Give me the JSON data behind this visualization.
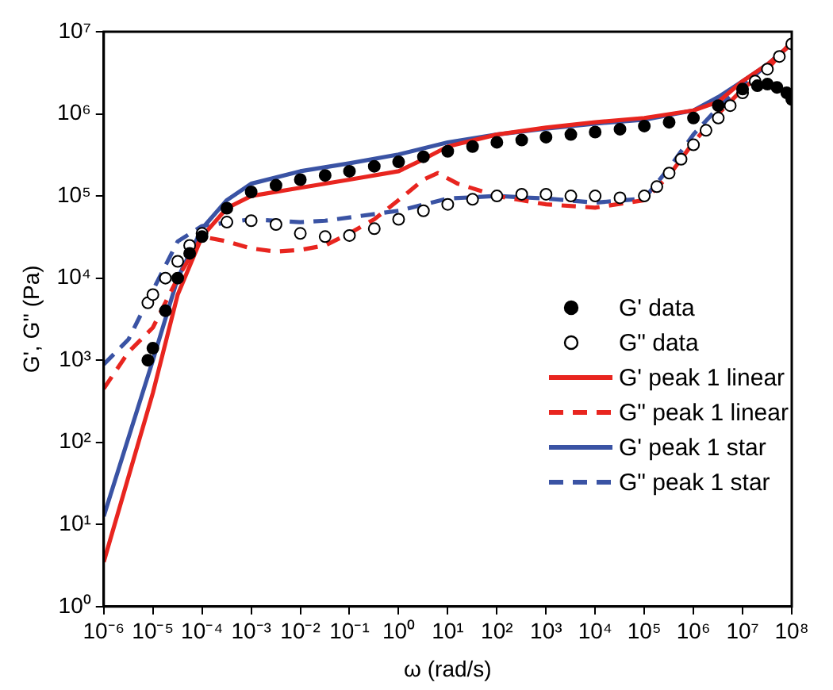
{
  "chart_data": {
    "type": "line",
    "xlabel": "ω (rad/s)",
    "ylabel": "G', G'' (Pa)",
    "log": "xy",
    "grid": false,
    "legend": "right",
    "xlim": [
      1e-06,
      100000000.0
    ],
    "ylim": [
      1,
      10000000.0
    ],
    "xticks": [
      {
        "value": 1e-06,
        "label": "10⁻⁶"
      },
      {
        "value": 1e-05,
        "label": "10⁻⁵"
      },
      {
        "value": 0.0001,
        "label": "10⁻⁴"
      },
      {
        "value": 0.001,
        "label": "10⁻³"
      },
      {
        "value": 0.01,
        "label": "10⁻²"
      },
      {
        "value": 0.1,
        "label": "10⁻¹"
      },
      {
        "value": 1,
        "label": "10⁰"
      },
      {
        "value": 10,
        "label": "10¹"
      },
      {
        "value": 100,
        "label": "10²"
      },
      {
        "value": 1000.0,
        "label": "10³"
      },
      {
        "value": 10000.0,
        "label": "10⁴"
      },
      {
        "value": 100000.0,
        "label": "10⁵"
      },
      {
        "value": 1000000.0,
        "label": "10⁶"
      },
      {
        "value": 10000000.0,
        "label": "10⁷"
      },
      {
        "value": 100000000.0,
        "label": "10⁸"
      }
    ],
    "yticks": [
      {
        "value": 1,
        "label": "10⁰"
      },
      {
        "value": 10,
        "label": "10¹"
      },
      {
        "value": 100,
        "label": "10²"
      },
      {
        "value": 1000.0,
        "label": "10³"
      },
      {
        "value": 10000.0,
        "label": "10⁴"
      },
      {
        "value": 100000.0,
        "label": "10⁵"
      },
      {
        "value": 1000000.0,
        "label": "10⁶"
      },
      {
        "value": 10000000.0,
        "label": "10⁷"
      }
    ],
    "series": [
      {
        "name": "G' data",
        "type": "scatter",
        "marker": "circle",
        "color": "#000000",
        "x": [
          7.9e-06,
          1e-05,
          1.8e-05,
          3.2e-05,
          5.6e-05,
          0.0001,
          0.00032,
          0.001,
          0.0032,
          0.01,
          0.032,
          0.1,
          0.32,
          1,
          3.2,
          10,
          32,
          100,
          320,
          1000,
          3200,
          10000.0,
          32000.0,
          100000.0,
          320000.0,
          1000000.0,
          3200000.0,
          10000000.0,
          20000000.0,
          32000000.0,
          50000000.0,
          79000000.0,
          100000000.0
        ],
        "values": [
          1000,
          1400,
          4000,
          10000.0,
          20000,
          32000,
          71000,
          112000.0,
          135000.0,
          158000.0,
          178000.0,
          200000.0,
          230000.0,
          260000.0,
          300000.0,
          350000.0,
          400000.0,
          450000.0,
          480000.0,
          520000.0,
          560000.0,
          600000.0,
          650000.0,
          710000.0,
          790000.0,
          890000.0,
          1260000.0,
          2000000.0,
          2200000.0,
          2300000.0,
          2100000.0,
          1800000.0,
          1500000.0
        ]
      },
      {
        "name": "G\" data",
        "type": "scatter",
        "marker": "circle-open",
        "color": "#000000",
        "x": [
          7.9e-06,
          1e-05,
          1.8e-05,
          3.2e-05,
          5.6e-05,
          0.0001,
          0.00032,
          0.001,
          0.0032,
          0.01,
          0.032,
          0.1,
          0.32,
          1,
          3.2,
          10,
          32,
          100,
          320,
          1000,
          3200,
          10000.0,
          32000.0,
          100000.0,
          180000.0,
          320000.0,
          560000.0,
          1000000.0,
          1800000.0,
          3200000.0,
          5600000.0,
          10000000.0,
          18000000.0,
          32000000.0,
          56000000.0,
          100000000.0
        ],
        "values": [
          5000,
          6300,
          10000.0,
          16000,
          25000,
          35000,
          48000,
          50000,
          45000,
          35000,
          32000,
          33000,
          40000,
          52000,
          66000,
          79000,
          91000,
          100000.0,
          105000.0,
          105000.0,
          100000.0,
          100000.0,
          95000,
          100000.0,
          130000.0,
          190000.0,
          280000.0,
          420000.0,
          630000.0,
          890000.0,
          1260000.0,
          1800000.0,
          2500000.0,
          3500000.0,
          5000000.0,
          7100000.0
        ]
      },
      {
        "name": "G' peak 1 linear",
        "type": "line",
        "line_style": "solid",
        "marker": "none",
        "color": "#e8251f",
        "x": [
          1e-06,
          1e-05,
          3.2e-05,
          0.0001,
          0.00032,
          0.001,
          0.01,
          0.1,
          1,
          3.2,
          10,
          100,
          1000.0,
          10000.0,
          100000.0,
          1000000.0,
          3200000.0,
          10000000.0,
          32000000.0,
          100000000.0
        ],
        "values": [
          3.5,
          400,
          6300,
          32000,
          71000,
          100000.0,
          126000.0,
          158000.0,
          200000.0,
          280000.0,
          400000.0,
          560000.0,
          680000.0,
          790000.0,
          890000.0,
          1100000.0,
          1400000.0,
          2500000.0,
          4000000.0,
          7100000.0
        ]
      },
      {
        "name": "G\" peak 1 linear",
        "type": "line",
        "line_style": "dashed",
        "marker": "none",
        "color": "#e8251f",
        "x": [
          1e-06,
          3.2e-06,
          1e-05,
          3.2e-05,
          0.0001,
          0.00032,
          0.001,
          0.0032,
          0.01,
          0.032,
          0.1,
          0.32,
          1,
          3.2,
          6.3,
          16,
          100,
          1000.0,
          10000.0,
          100000.0,
          320000.0,
          1000000.0,
          3200000.0,
          10000000.0,
          32000000.0,
          100000000.0
        ],
        "values": [
          450,
          1260,
          2500,
          10000.0,
          32000,
          28000,
          23000,
          21000,
          22000,
          25000,
          35000,
          52000,
          89000,
          158000.0,
          190000.0,
          141000.0,
          100000.0,
          79000,
          72000,
          89000,
          178000.0,
          450000.0,
          1000000.0,
          2000000.0,
          3500000.0,
          7600000.0
        ]
      },
      {
        "name": "G' peak 1 star",
        "type": "line",
        "line_style": "solid",
        "marker": "none",
        "color": "#3a53a4",
        "x": [
          1e-06,
          1e-05,
          3.2e-05,
          0.0001,
          0.00032,
          0.001,
          0.01,
          0.1,
          1,
          10,
          100,
          1000.0,
          10000.0,
          100000.0,
          1000000.0,
          3200000.0,
          10000000.0,
          32000000.0,
          100000000.0
        ],
        "values": [
          12.6,
          1000,
          10000.0,
          40000,
          89000,
          141000.0,
          200000.0,
          250000.0,
          320000.0,
          450000.0,
          560000.0,
          660000.0,
          760000.0,
          850000.0,
          1100000.0,
          1600000.0,
          2500000.0,
          4000000.0,
          7100000.0
        ]
      },
      {
        "name": "G\" peak 1 star",
        "type": "line",
        "line_style": "dashed",
        "marker": "none",
        "color": "#3a53a4",
        "x": [
          1e-06,
          3.2e-06,
          1e-05,
          3.2e-05,
          0.0001,
          0.001,
          0.01,
          0.032,
          1,
          10,
          100,
          1000.0,
          10000.0,
          100000.0,
          320000.0,
          1000000.0,
          3200000.0,
          10000000.0,
          32000000.0,
          100000000.0
        ],
        "values": [
          890,
          1800,
          7100,
          28000,
          43000,
          52000,
          48000,
          50000,
          66000,
          93000,
          100000.0,
          93000,
          83000,
          93000,
          220000.0,
          560000.0,
          1200000.0,
          2200000.0,
          4000000.0,
          7200000.0
        ]
      }
    ]
  }
}
